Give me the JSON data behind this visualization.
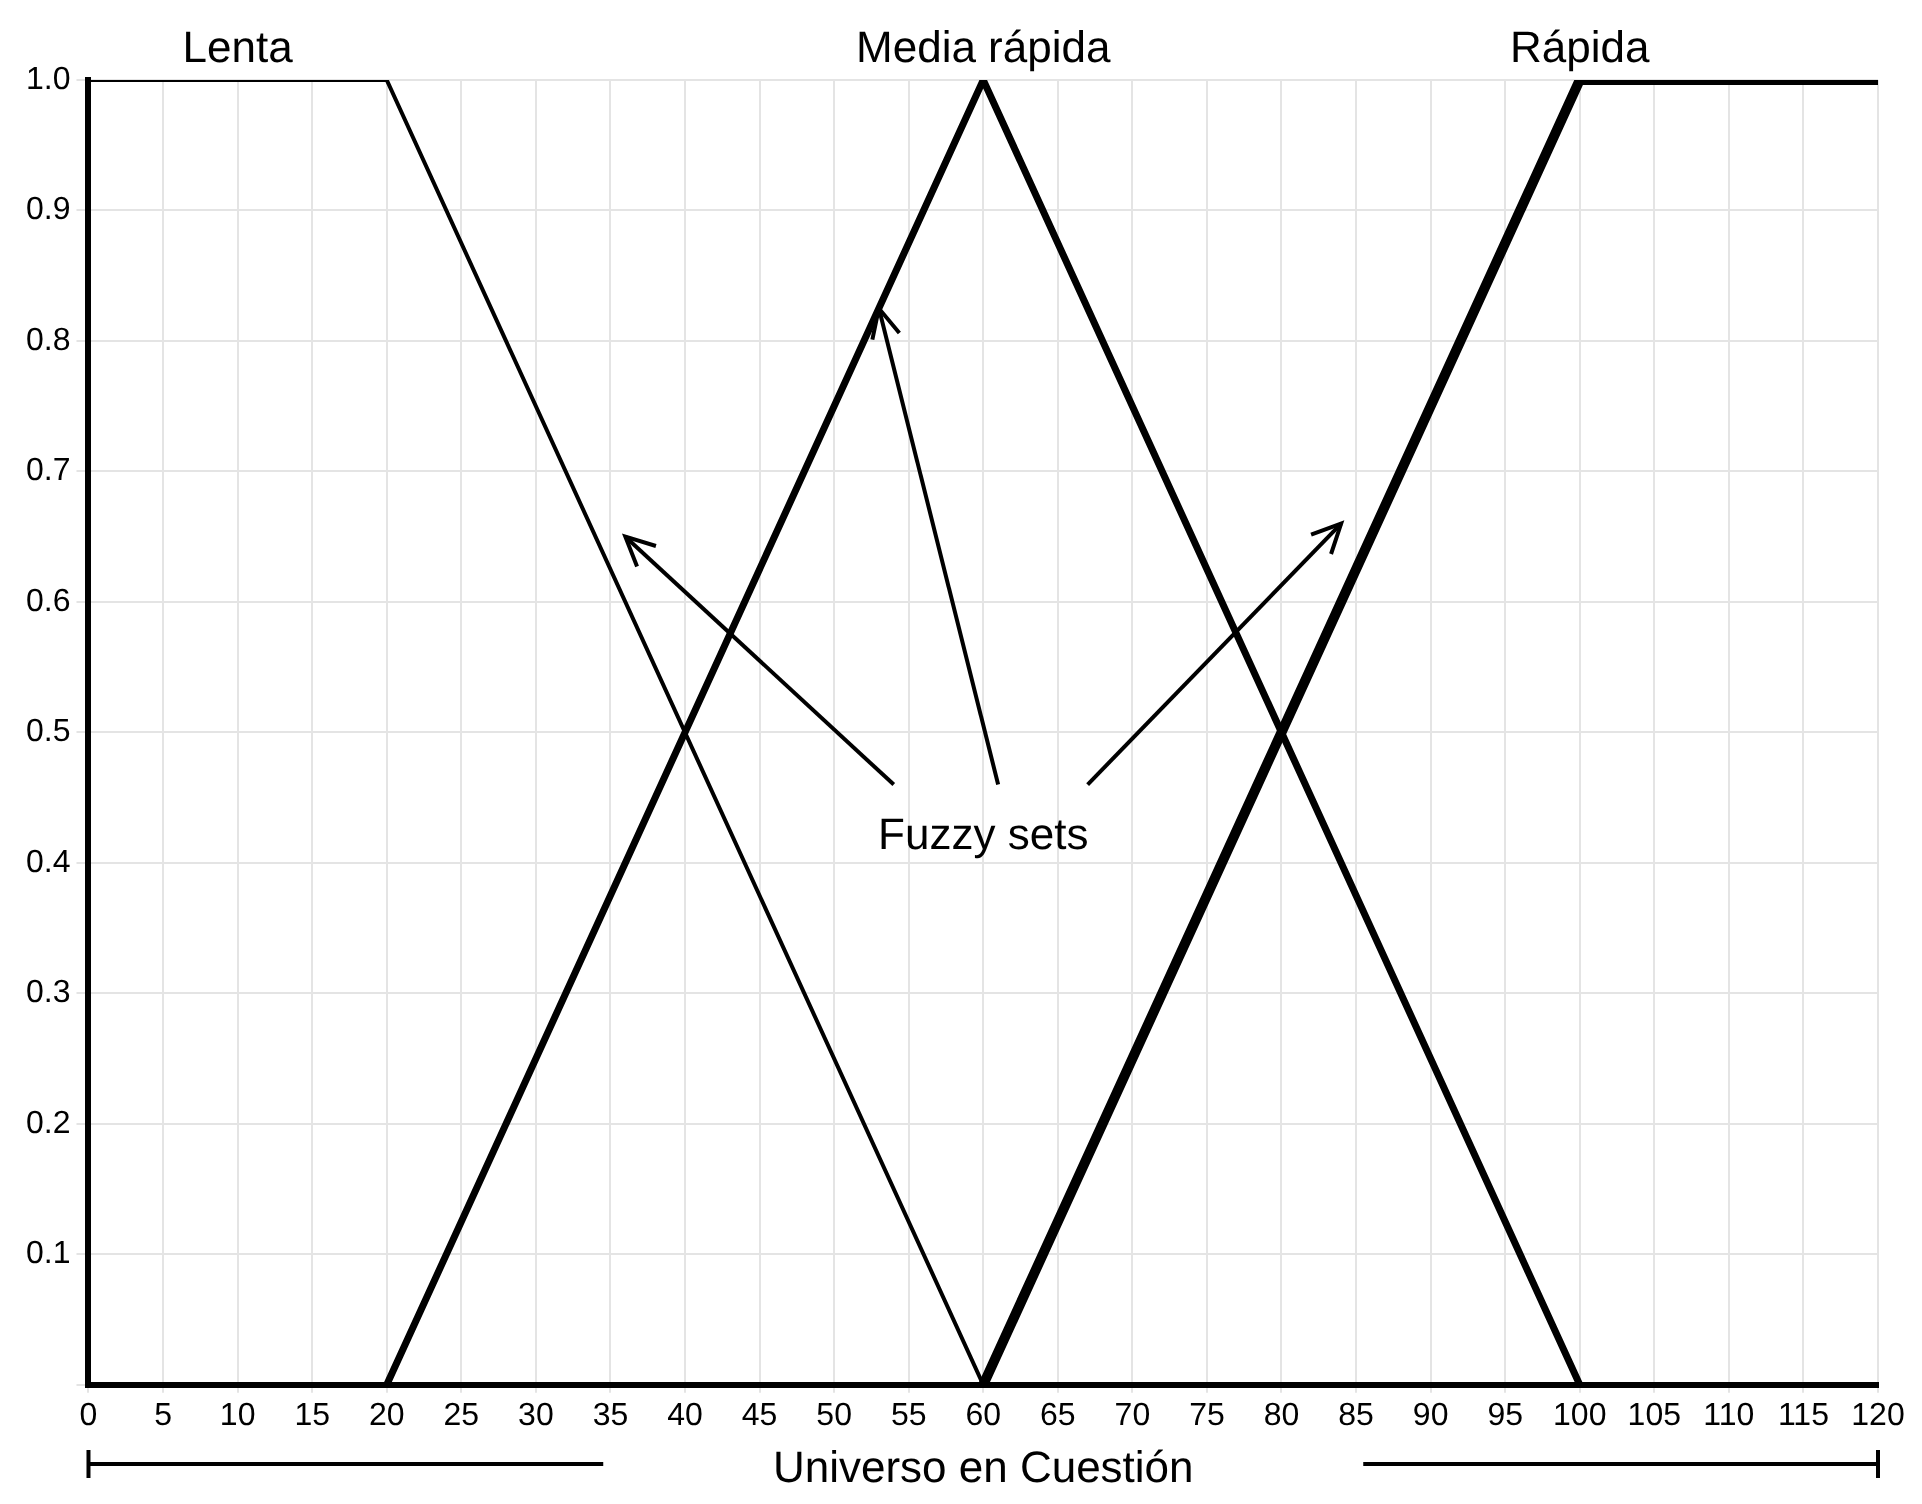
{
  "chart_data": {
    "type": "line",
    "xlabel": "Universo en Cuestión",
    "annotations": [
      {
        "text": "Fuzzy sets",
        "x": 53,
        "y": 0.825
      }
    ],
    "series": [
      {
        "name": "Lenta",
        "color": "#000000",
        "x": [
          0,
          20,
          60
        ],
        "values": [
          1,
          1,
          0
        ]
      },
      {
        "name": "Media rápida",
        "color": "#000000",
        "x": [
          20,
          60,
          100
        ],
        "values": [
          0,
          1,
          0
        ]
      },
      {
        "name": "Rápida",
        "color": "#000000",
        "x": [
          60,
          100,
          120
        ],
        "values": [
          0,
          1,
          1
        ]
      }
    ],
    "xlim": [
      0,
      120
    ],
    "xticks": [
      0,
      5,
      10,
      15,
      20,
      25,
      30,
      35,
      40,
      45,
      50,
      55,
      60,
      65,
      70,
      75,
      80,
      85,
      90,
      95,
      100,
      105,
      110,
      115,
      120
    ],
    "ylim": [
      0,
      1
    ],
    "yticks": [
      {
        "value": 0,
        "label": null
      },
      0.1,
      0.2,
      0.3,
      0.4,
      0.5,
      0.6,
      0.7,
      0.8,
      0.9,
      {
        "value": 1,
        "label": "1.0"
      }
    ],
    "grid": true,
    "legend": false,
    "marker": "none",
    "line_style": "solid"
  }
}
